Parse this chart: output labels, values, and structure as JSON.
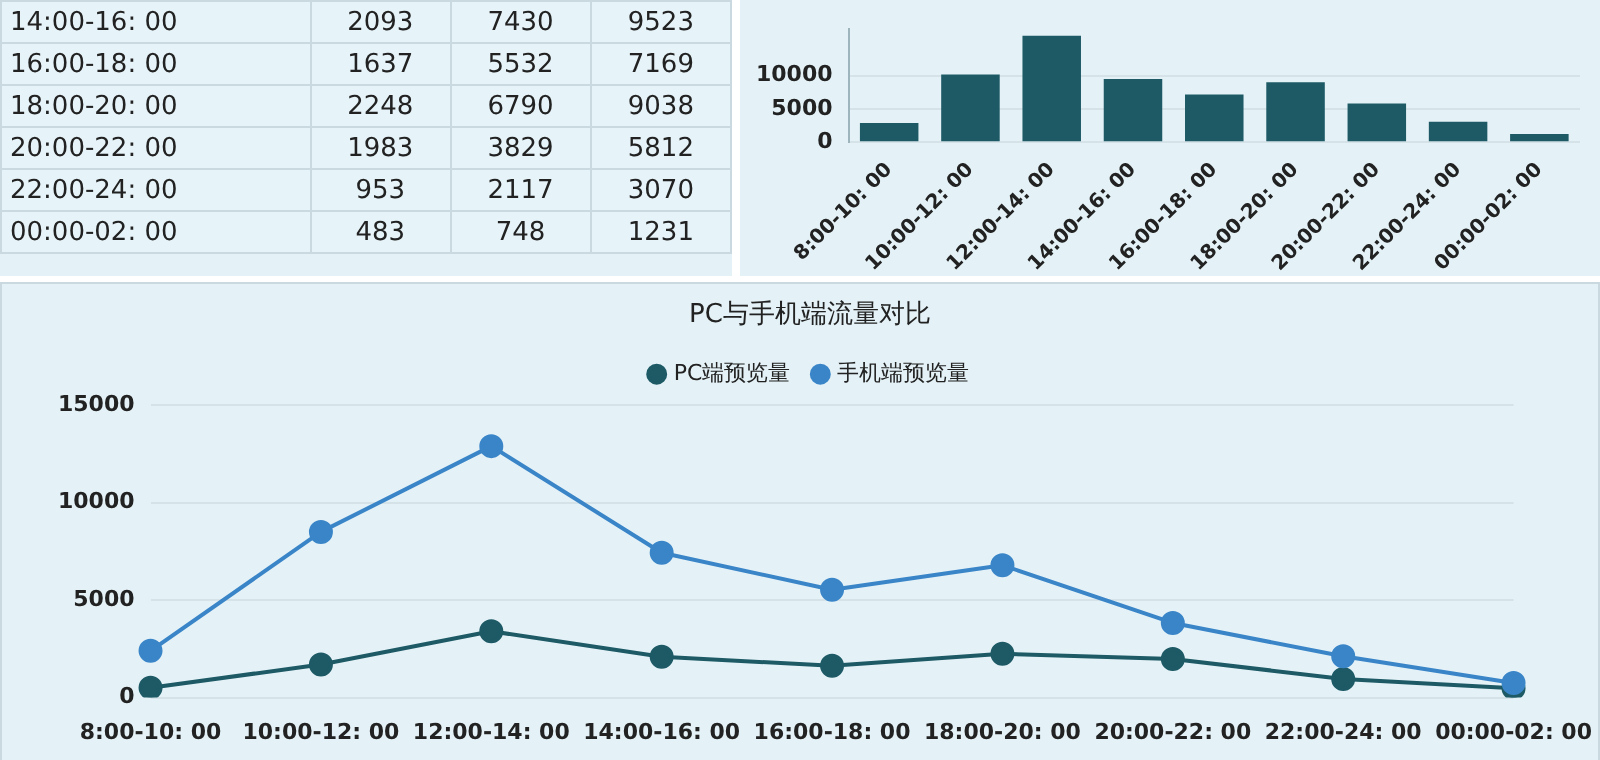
{
  "chart_data": [
    {
      "type": "other",
      "categories": [
        "14:00-16: 00",
        "16:00-18: 00",
        "18:00-20: 00",
        "20:00-22: 00",
        "22:00-24: 00",
        "00:00-02: 00"
      ],
      "series": [
        {
          "values": [
            2093,
            1637,
            2248,
            1983,
            953,
            483
          ]
        },
        {
          "values": [
            7430,
            5532,
            6790,
            3829,
            2117,
            748
          ]
        },
        {
          "values": [
            9523,
            7169,
            9038,
            5812,
            3070,
            1231
          ]
        }
      ],
      "data_labels": true
    },
    {
      "type": "bar",
      "categories": [
        "8:00-10: 00",
        "10:00-12: 00",
        "12:00-14: 00",
        "14:00-16: 00",
        "16:00-18: 00",
        "18:00-20: 00",
        "20:00-22: 00",
        "22:00-24: 00",
        "00:00-02: 00"
      ],
      "values": [
        2900,
        10200,
        16000,
        9523,
        7169,
        9038,
        5812,
        3070,
        1231
      ],
      "color": "#1d5a66",
      "ylim": [
        0,
        17000
      ],
      "yticks": [
        0,
        5000,
        10000
      ],
      "grid": "y"
    },
    {
      "type": "line",
      "title": "PC与手机端流量对比",
      "categories": [
        "8:00-10: 00",
        "10:00-12: 00",
        "12:00-14: 00",
        "14:00-16: 00",
        "16:00-18: 00",
        "18:00-20: 00",
        "20:00-22: 00",
        "22:00-24: 00",
        "00:00-02: 00"
      ],
      "series": [
        {
          "name": "PC端预览量",
          "color": "#1d5a66",
          "values": [
            500,
            1700,
            3400,
            2093,
            1637,
            2248,
            1983,
            953,
            483
          ]
        },
        {
          "name": "手机端预览量",
          "color": "#3a85c8",
          "values": [
            2400,
            8500,
            12900,
            7430,
            5532,
            6790,
            3829,
            2117,
            748
          ]
        }
      ],
      "ylim": [
        0,
        15000
      ],
      "yticks": [
        0,
        5000,
        10000,
        15000
      ],
      "grid": "y",
      "legend": "top",
      "marker": "circle",
      "line_style": "solid"
    }
  ]
}
